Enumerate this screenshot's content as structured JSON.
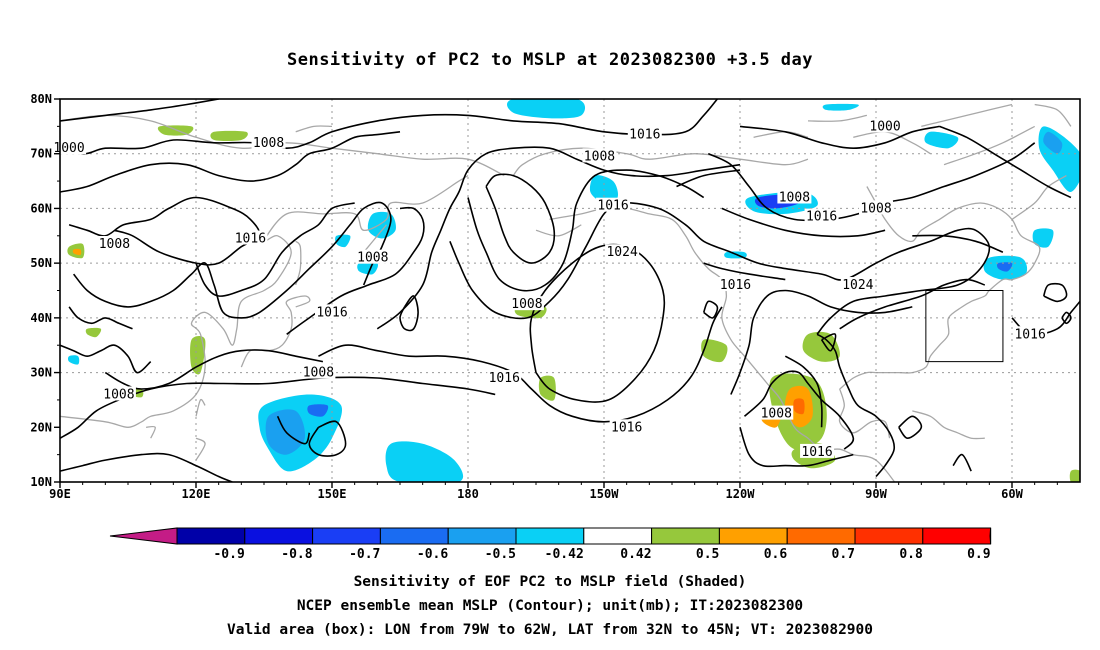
{
  "title": "Sensitivity of PC2 to MSLP at 2023082300 +3.5 day",
  "lat_labels": [
    "80N",
    "70N",
    "60N",
    "50N",
    "40N",
    "30N",
    "20N",
    "10N"
  ],
  "lon_labels": [
    "90E",
    "120E",
    "150E",
    "180",
    "150W",
    "120W",
    "90W",
    "60W"
  ],
  "contour_labels": [
    {
      "text": "1000",
      "lon": 92,
      "lat": 71
    },
    {
      "text": "1008",
      "lon": 136,
      "lat": 72
    },
    {
      "text": "1016",
      "lon": 219,
      "lat": 73.5
    },
    {
      "text": "1008",
      "lon": 209,
      "lat": 69.5
    },
    {
      "text": "1000",
      "lon": 272,
      "lat": 75
    },
    {
      "text": "1008",
      "lon": 252,
      "lat": 62
    },
    {
      "text": "1016",
      "lon": 212,
      "lat": 60.5
    },
    {
      "text": "1016",
      "lon": 258,
      "lat": 58.5
    },
    {
      "text": "1008",
      "lon": 270,
      "lat": 60
    },
    {
      "text": "1008",
      "lon": 102,
      "lat": 53.5
    },
    {
      "text": "1016",
      "lon": 132,
      "lat": 54.5
    },
    {
      "text": "1008",
      "lon": 159,
      "lat": 51
    },
    {
      "text": "1024",
      "lon": 214,
      "lat": 52
    },
    {
      "text": "1016",
      "lon": 150,
      "lat": 41
    },
    {
      "text": "1008",
      "lon": 193,
      "lat": 42.5
    },
    {
      "text": "1016",
      "lon": 239,
      "lat": 46
    },
    {
      "text": "1024",
      "lon": 266,
      "lat": 46
    },
    {
      "text": "1016",
      "lon": 304,
      "lat": 37
    },
    {
      "text": "1008",
      "lon": 147,
      "lat": 30
    },
    {
      "text": "1016",
      "lon": 188,
      "lat": 29
    },
    {
      "text": "1008",
      "lon": 103,
      "lat": 26
    },
    {
      "text": "1016",
      "lon": 215,
      "lat": 20
    },
    {
      "text": "1008",
      "lon": 248,
      "lat": 22.5
    },
    {
      "text": "1016",
      "lon": 257,
      "lat": 15.5
    }
  ],
  "colorbar": {
    "labels": [
      "-0.9",
      "-0.8",
      "-0.7",
      "-0.6",
      "-0.5",
      "-0.42",
      "0.42",
      "0.5",
      "0.6",
      "0.7",
      "0.8",
      "0.9"
    ],
    "low_color": "#c41c86",
    "high_color": "#f59ac8",
    "colors": [
      "#0000a8",
      "#0a10e0",
      "#1a3ef5",
      "#1a6cf2",
      "#1aa0f0",
      "#0ad0f5",
      "#ffffff",
      "#96c83c",
      "#ffa000",
      "#ff6a00",
      "#ff3000",
      "#ff0000"
    ]
  },
  "valid_box": {
    "lon_min": -79,
    "lon_max": -62,
    "lat_min": 32,
    "lat_max": 45
  },
  "caption_lines": [
    "Sensitivity of EOF PC2 to MSLP field (Shaded)",
    "NCEP ensemble mean MSLP (Contour); unit(mb); IT:2023082300",
    "Valid area (box): LON from 79W to 62W, LAT from 32N to 45N; VT: 2023082900"
  ]
}
